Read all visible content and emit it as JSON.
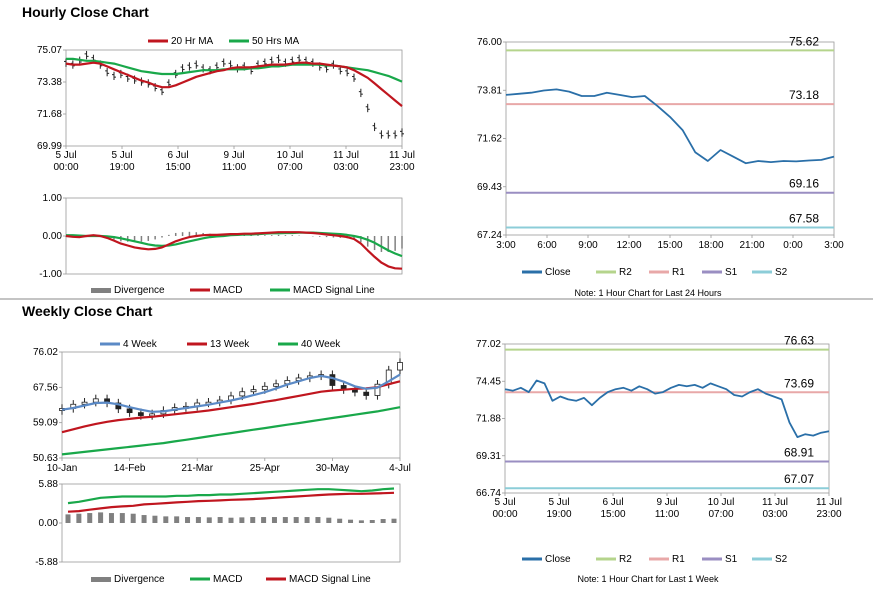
{
  "sections": {
    "hourly": {
      "title": "Hourly Close Chart"
    },
    "weekly": {
      "title": "Weekly Close Chart"
    }
  },
  "chart_data": [
    {
      "id": "hourly_price",
      "type": "line",
      "title": "",
      "ylim": [
        69.99,
        75.07
      ],
      "ytick_labels": [
        "75.07",
        "73.38",
        "71.68",
        "69.99"
      ],
      "xtick_labels": [
        [
          "5 Jul",
          "00:00"
        ],
        [
          "5 Jul",
          "19:00"
        ],
        [
          "6 Jul",
          "15:00"
        ],
        [
          "9 Jul",
          "11:00"
        ],
        [
          "10 Jul",
          "07:00"
        ],
        [
          "11 Jul",
          "03:00"
        ],
        [
          "11 Jul",
          "23:00"
        ]
      ],
      "legend": [
        "20 Hr MA",
        "50 Hrs MA"
      ],
      "colors": {
        "price": "#222222",
        "ma20": "#c0161f",
        "ma50": "#19a84a"
      },
      "series": [
        {
          "name": "Close",
          "values": [
            74.4,
            74.3,
            74.5,
            74.8,
            74.6,
            74.3,
            73.9,
            73.7,
            73.8,
            73.6,
            73.5,
            73.4,
            73.3,
            73.1,
            72.9,
            73.3,
            73.8,
            74.1,
            74.2,
            74.3,
            74.1,
            74.0,
            74.2,
            74.4,
            74.3,
            74.1,
            74.2,
            74.0,
            74.3,
            74.4,
            74.5,
            74.6,
            74.4,
            74.5,
            74.6,
            74.5,
            74.4,
            74.2,
            74.1,
            74.3,
            74.0,
            73.9,
            73.6,
            72.8,
            72.0,
            71.0,
            70.6,
            70.6,
            70.6,
            70.7
          ]
        },
        {
          "name": "20 Hr MA",
          "values": [
            74.35,
            74.3,
            74.3,
            74.35,
            74.4,
            74.35,
            74.2,
            74.05,
            73.9,
            73.75,
            73.6,
            73.45,
            73.35,
            73.2,
            73.1,
            73.1,
            73.2,
            73.35,
            73.5,
            73.65,
            73.75,
            73.85,
            73.95,
            74.0,
            74.1,
            74.15,
            74.15,
            74.15,
            74.2,
            74.25,
            74.3,
            74.3,
            74.3,
            74.35,
            74.4,
            74.4,
            74.35,
            74.35,
            74.3,
            74.25,
            74.2,
            74.15,
            74.0,
            73.8,
            73.6,
            73.3,
            73.0,
            72.7,
            72.4,
            72.1
          ]
        },
        {
          "name": "50 Hrs MA",
          "values": [
            74.6,
            74.6,
            74.55,
            74.5,
            74.5,
            74.45,
            74.4,
            74.35,
            74.25,
            74.15,
            74.05,
            73.95,
            73.9,
            73.85,
            73.8,
            73.8,
            73.8,
            73.85,
            73.9,
            73.95,
            74.0,
            74.0,
            74.0,
            74.05,
            74.05,
            74.05,
            74.05,
            74.1,
            74.1,
            74.15,
            74.2,
            74.2,
            74.25,
            74.3,
            74.3,
            74.3,
            74.3,
            74.3,
            74.25,
            74.25,
            74.2,
            74.15,
            74.1,
            74.05,
            74.0,
            73.9,
            73.8,
            73.7,
            73.55,
            73.4
          ]
        }
      ]
    },
    {
      "id": "hourly_macd",
      "type": "line",
      "ylim": [
        -1.0,
        1.0
      ],
      "ytick_labels": [
        "1.00",
        "0.00",
        "-1.00"
      ],
      "legend": [
        "Divergence",
        "MACD",
        "MACD Signal Line"
      ],
      "colors": {
        "divergence": "#808080",
        "macd": "#c0161f",
        "signal": "#19a84a"
      },
      "series": [
        {
          "name": "MACD",
          "values": [
            0.0,
            -0.02,
            -0.03,
            0.0,
            0.02,
            0.0,
            -0.05,
            -0.12,
            -0.2,
            -0.25,
            -0.3,
            -0.33,
            -0.35,
            -0.34,
            -0.3,
            -0.22,
            -0.14,
            -0.08,
            -0.03,
            0.0,
            0.02,
            0.03,
            0.03,
            0.04,
            0.05,
            0.05,
            0.06,
            0.06,
            0.07,
            0.08,
            0.09,
            0.1,
            0.1,
            0.1,
            0.1,
            0.09,
            0.08,
            0.06,
            0.04,
            0.02,
            0.0,
            -0.03,
            -0.08,
            -0.2,
            -0.38,
            -0.55,
            -0.7,
            -0.8,
            -0.85,
            -0.86
          ]
        },
        {
          "name": "MACD Signal Line",
          "values": [
            0.02,
            0.02,
            0.01,
            0.0,
            0.0,
            0.0,
            -0.01,
            -0.03,
            -0.06,
            -0.1,
            -0.14,
            -0.18,
            -0.22,
            -0.25,
            -0.26,
            -0.25,
            -0.22,
            -0.18,
            -0.14,
            -0.1,
            -0.06,
            -0.03,
            -0.01,
            0.0,
            0.02,
            0.03,
            0.04,
            0.04,
            0.05,
            0.06,
            0.07,
            0.07,
            0.08,
            0.08,
            0.09,
            0.09,
            0.09,
            0.08,
            0.07,
            0.06,
            0.05,
            0.03,
            0.0,
            -0.04,
            -0.1,
            -0.18,
            -0.28,
            -0.38,
            -0.46,
            -0.53
          ]
        },
        {
          "name": "Divergence",
          "values": [
            -0.02,
            -0.04,
            -0.04,
            0.0,
            0.02,
            0.0,
            -0.04,
            -0.09,
            -0.14,
            -0.15,
            -0.16,
            -0.15,
            -0.13,
            -0.09,
            -0.04,
            0.03,
            0.08,
            0.1,
            0.11,
            0.1,
            0.08,
            0.06,
            0.04,
            0.04,
            0.03,
            0.02,
            0.02,
            0.02,
            0.02,
            0.02,
            0.02,
            0.03,
            0.02,
            0.02,
            0.01,
            0.0,
            -0.01,
            -0.02,
            -0.03,
            -0.04,
            -0.05,
            -0.06,
            -0.08,
            -0.16,
            -0.28,
            -0.37,
            -0.42,
            -0.42,
            -0.39,
            -0.33
          ]
        }
      ]
    },
    {
      "id": "hourly_levels",
      "type": "line",
      "ylim": [
        67.24,
        76.0
      ],
      "ytick_labels": [
        "76.00",
        "73.81",
        "71.62",
        "69.43",
        "67.24"
      ],
      "xtick_labels": [
        "3:00",
        "6:00",
        "9:00",
        "12:00",
        "15:00",
        "18:00",
        "21:00",
        "0:00",
        "3:00"
      ],
      "levels": [
        {
          "name": "R2",
          "value": 75.62,
          "label": "75.62",
          "color": "#b5d48c"
        },
        {
          "name": "R1",
          "value": 73.18,
          "label": "73.18",
          "color": "#e8a8a8"
        },
        {
          "name": "S1",
          "value": 69.16,
          "label": "69.16",
          "color": "#9a8ec2"
        },
        {
          "name": "S2",
          "value": 67.58,
          "label": "67.58",
          "color": "#8ccdd8"
        }
      ],
      "close_color": "#2a6fa8",
      "close": [
        73.6,
        73.65,
        73.7,
        73.8,
        73.85,
        73.75,
        73.55,
        73.55,
        73.7,
        73.6,
        73.5,
        73.55,
        73.1,
        72.6,
        72.0,
        71.0,
        70.6,
        71.1,
        70.8,
        70.5,
        70.6,
        70.55,
        70.6,
        70.58,
        70.62,
        70.65,
        70.8
      ],
      "legend": [
        "Close",
        "R2",
        "R1",
        "S1",
        "S2"
      ],
      "note": "Note: 1 Hour Chart for Last 24 Hours"
    },
    {
      "id": "weekly_price",
      "type": "line",
      "ylim": [
        50.63,
        76.02
      ],
      "ytick_labels": [
        "76.02",
        "67.56",
        "59.09",
        "50.63"
      ],
      "xtick_labels": [
        "10-Jan",
        "14-Feb",
        "21-Mar",
        "25-Apr",
        "30-May",
        "4-Jul"
      ],
      "legend": [
        "4 Week",
        "13 Week",
        "40 Week"
      ],
      "colors": {
        "price": "#222222",
        "wk4": "#5b8ac6",
        "wk13": "#c0161f",
        "wk40": "#19a84a"
      },
      "series": [
        {
          "name": "Close",
          "values": [
            62.5,
            63.5,
            64.0,
            64.8,
            63.8,
            62.4,
            61.5,
            60.8,
            61.2,
            62.0,
            62.7,
            63.0,
            63.8,
            64.0,
            64.5,
            65.5,
            66.5,
            67.0,
            67.8,
            68.4,
            69.2,
            69.8,
            70.3,
            70.6,
            68.0,
            67.0,
            66.4,
            65.6,
            68.3,
            71.7,
            73.5
          ]
        },
        {
          "name": "4 Week",
          "values": [
            62.2,
            62.6,
            63.2,
            63.8,
            63.9,
            63.5,
            62.8,
            62.2,
            61.7,
            61.8,
            62.2,
            62.6,
            63.0,
            63.4,
            63.9,
            64.4,
            65.0,
            65.7,
            66.4,
            67.3,
            68.2,
            69.0,
            69.8,
            70.3,
            69.8,
            68.9,
            67.8,
            67.2,
            67.5,
            69.0,
            70.6
          ]
        },
        {
          "name": "13 Week",
          "values": [
            56.8,
            57.5,
            58.2,
            58.8,
            59.3,
            59.7,
            60.0,
            60.3,
            60.5,
            60.8,
            61.1,
            61.4,
            61.7,
            62.0,
            62.4,
            62.8,
            63.2,
            63.6,
            64.1,
            64.5,
            65.0,
            65.5,
            66.0,
            66.5,
            66.8,
            67.0,
            67.2,
            67.3,
            67.6,
            68.3,
            69.0
          ]
        },
        {
          "name": "40 Week",
          "values": [
            51.5,
            51.8,
            52.1,
            52.4,
            52.7,
            53.0,
            53.3,
            53.6,
            53.9,
            54.2,
            54.6,
            55.0,
            55.4,
            55.8,
            56.2,
            56.6,
            57.0,
            57.4,
            57.8,
            58.2,
            58.6,
            59.0,
            59.4,
            59.8,
            60.2,
            60.6,
            61.0,
            61.4,
            61.8,
            62.3,
            62.8
          ]
        }
      ]
    },
    {
      "id": "weekly_macd",
      "type": "line",
      "ylim": [
        -5.88,
        5.88
      ],
      "ytick_labels": [
        "5.88",
        "0.00",
        "-5.88"
      ],
      "legend": [
        "Divergence",
        "MACD",
        "MACD Signal Line"
      ],
      "colors": {
        "divergence": "#808080",
        "macd": "#19a84a",
        "signal": "#c0161f"
      },
      "series": [
        {
          "name": "MACD",
          "values": [
            3.0,
            3.2,
            3.5,
            3.8,
            3.9,
            4.0,
            4.0,
            4.0,
            4.0,
            4.0,
            4.1,
            4.1,
            4.2,
            4.2,
            4.3,
            4.3,
            4.4,
            4.5,
            4.6,
            4.7,
            4.8,
            4.9,
            5.0,
            5.1,
            5.1,
            5.0,
            4.9,
            4.8,
            4.9,
            5.1,
            5.2
          ]
        },
        {
          "name": "MACD Signal Line",
          "values": [
            1.7,
            1.8,
            2.0,
            2.2,
            2.4,
            2.5,
            2.6,
            2.8,
            2.9,
            3.0,
            3.1,
            3.2,
            3.3,
            3.35,
            3.4,
            3.5,
            3.55,
            3.6,
            3.7,
            3.8,
            3.9,
            4.0,
            4.1,
            4.2,
            4.3,
            4.35,
            4.4,
            4.4,
            4.45,
            4.5,
            4.55
          ]
        },
        {
          "name": "Divergence",
          "values": [
            1.3,
            1.4,
            1.5,
            1.6,
            1.5,
            1.5,
            1.4,
            1.2,
            1.1,
            1.0,
            1.0,
            0.9,
            0.9,
            0.85,
            0.9,
            0.8,
            0.85,
            0.9,
            0.9,
            0.9,
            0.9,
            0.9,
            0.9,
            0.9,
            0.8,
            0.65,
            0.5,
            0.4,
            0.45,
            0.6,
            0.65
          ]
        }
      ]
    },
    {
      "id": "weekly_levels",
      "type": "line",
      "ylim": [
        66.74,
        77.02
      ],
      "ytick_labels": [
        "77.02",
        "74.45",
        "71.88",
        "69.31",
        "66.74"
      ],
      "xtick_labels": [
        [
          "5 Jul",
          "00:00"
        ],
        [
          "5 Jul",
          "19:00"
        ],
        [
          "6 Jul",
          "15:00"
        ],
        [
          "9 Jul",
          "11:00"
        ],
        [
          "10 Jul",
          "07:00"
        ],
        [
          "11 Jul",
          "03:00"
        ],
        [
          "11 Jul",
          "23:00"
        ]
      ],
      "levels": [
        {
          "name": "R2",
          "value": 76.63,
          "label": "76.63",
          "color": "#b5d48c"
        },
        {
          "name": "R1",
          "value": 73.69,
          "label": "73.69",
          "color": "#e8a8a8"
        },
        {
          "name": "S1",
          "value": 68.91,
          "label": "68.91",
          "color": "#9a8ec2"
        },
        {
          "name": "S2",
          "value": 67.07,
          "label": "67.07",
          "color": "#8ccdd8"
        }
      ],
      "close_color": "#2a6fa8",
      "close": [
        73.9,
        73.8,
        74.0,
        73.7,
        74.5,
        74.3,
        73.1,
        73.4,
        73.2,
        73.1,
        73.3,
        72.8,
        73.3,
        73.7,
        73.9,
        74.0,
        73.8,
        74.1,
        73.9,
        73.6,
        73.7,
        74.0,
        74.2,
        74.1,
        74.2,
        74.0,
        74.3,
        74.1,
        73.9,
        73.5,
        73.4,
        73.7,
        73.9,
        73.6,
        73.4,
        73.2,
        71.6,
        70.6,
        70.8,
        70.7,
        70.9,
        71.0
      ],
      "legend": [
        "Close",
        "R2",
        "R1",
        "S1",
        "S2"
      ],
      "note": "Note: 1 Hour Chart for Last 1 Week"
    }
  ]
}
